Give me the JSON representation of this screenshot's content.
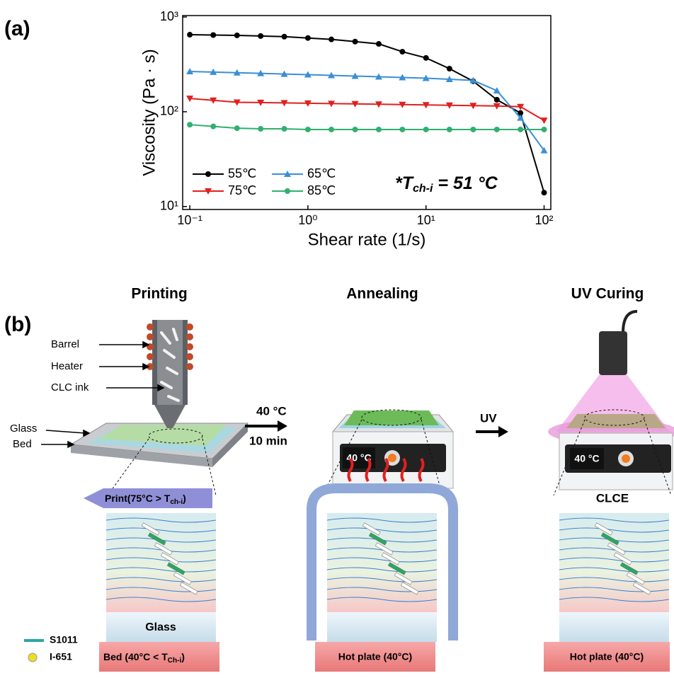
{
  "panel_a": "(a)",
  "chart_data": {
    "type": "line",
    "y_label": "Viscosity (Pa · s)",
    "x_label": "Shear rate (1/s)",
    "log_x": true,
    "log_y": true,
    "x": [
      0.1,
      0.158,
      0.251,
      0.398,
      0.631,
      1,
      1.58,
      2.51,
      3.98,
      6.31,
      10,
      15.8,
      25.1,
      39.8,
      63.1,
      100
    ],
    "series": [
      {
        "name": "55℃",
        "color": "#000000",
        "marker": "circle",
        "values": [
          650,
          645,
          640,
          630,
          620,
          600,
          580,
          550,
          520,
          430,
          370,
          285,
          210,
          134,
          97,
          14
        ]
      },
      {
        "name": "65℃",
        "color": "#3a8fd6",
        "marker": "triangle-up",
        "values": [
          266,
          262,
          258,
          254,
          250,
          246,
          242,
          238,
          234,
          230,
          226,
          220,
          214,
          167,
          86,
          39
        ]
      },
      {
        "name": "75℃",
        "color": "#e02020",
        "marker": "triangle-down",
        "values": [
          138,
          132,
          126,
          125,
          124,
          123,
          122,
          121,
          120,
          119,
          118,
          117,
          116,
          115,
          113,
          81
        ]
      },
      {
        "name": "85℃",
        "color": "#30b070",
        "marker": "circle",
        "values": [
          73,
          70,
          67,
          66,
          66,
          65,
          65,
          65,
          65,
          65,
          65,
          65,
          65,
          65,
          65,
          65
        ]
      }
    ],
    "xlim": [
      0.087,
      114
    ],
    "ylim": [
      9.3,
      1035
    ],
    "xticks": [
      {
        "value": 0.1,
        "label": "10⁻¹"
      },
      {
        "value": 1,
        "label": "10⁰"
      },
      {
        "value": 10,
        "label": "10¹"
      },
      {
        "value": 100,
        "label": "10²"
      }
    ],
    "yticks": [
      {
        "value": 10,
        "label": "10¹"
      },
      {
        "value": 100,
        "label": "10²"
      },
      {
        "value": 1000,
        "label": "10³"
      }
    ],
    "annotation": {
      "lead": "*T",
      "sub": "ch-i",
      "rest": " =  51 °C"
    }
  },
  "diagram": {
    "panel_b": "(b)",
    "stages": [
      "Printing",
      "Annealing",
      "UV Curing"
    ],
    "printer_labels": [
      "Barrel",
      "Heater",
      "CLC ink",
      "Glass",
      "Bed"
    ],
    "anneal_step": [
      "40 °C",
      "10 min"
    ],
    "uv_step": "UV",
    "display": "40 °C",
    "print_arrow": {
      "text": "Print(75°C > T",
      "sub": "ch-i",
      "end": ")"
    },
    "clce": "CLCE",
    "glass": "Glass",
    "bed": {
      "text": "Bed (40°C < T",
      "sub": "Ch-i",
      "end": ")"
    },
    "hot_plate": "Hot plate (40°C)",
    "legend": [
      "S1011",
      "I-651"
    ]
  }
}
